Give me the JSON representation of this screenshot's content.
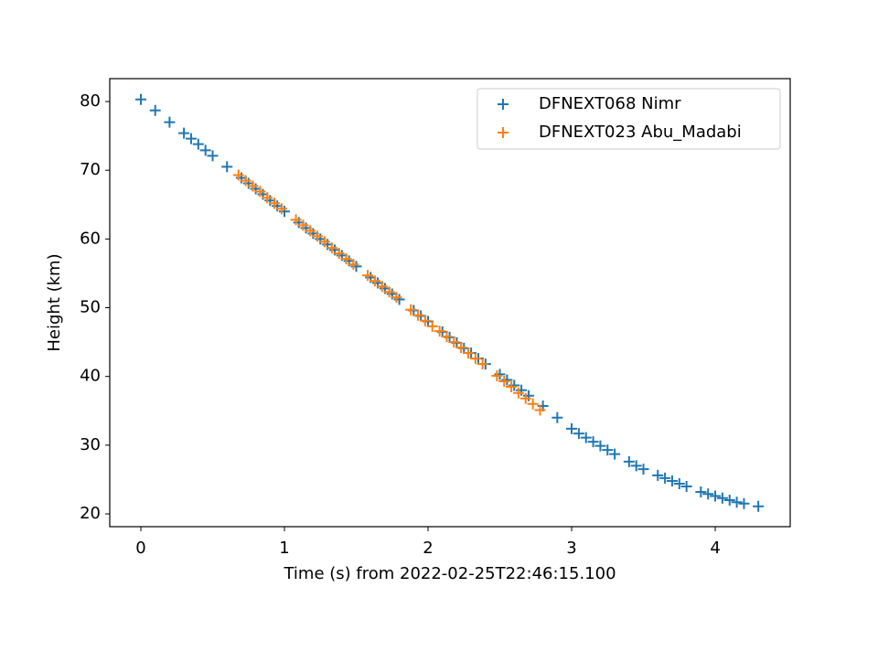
{
  "chart_data": {
    "type": "scatter",
    "xlabel": "Time (s) from 2022-02-25T22:46:15.100",
    "ylabel": "Height (km)",
    "xlim": [
      -0.2166,
      4.522
    ],
    "ylim": [
      18.14,
      83.33
    ],
    "xticks": [
      0,
      1,
      2,
      3,
      4
    ],
    "yticks": [
      20,
      30,
      40,
      50,
      60,
      70,
      80
    ],
    "legend": "upper right",
    "marker": "+",
    "series": [
      {
        "name": "DFNEXT068 Nimr",
        "color": "#1f77b4",
        "x": [
          0,
          0.1,
          0.2,
          0.3,
          0.35,
          0.4,
          0.45,
          0.5,
          0.6,
          0.7,
          0.75,
          0.8,
          0.85,
          0.9,
          0.95,
          1.0,
          1.1,
          1.15,
          1.2,
          1.25,
          1.3,
          1.35,
          1.4,
          1.45,
          1.5,
          1.6,
          1.65,
          1.7,
          1.75,
          1.8,
          1.9,
          1.95,
          2.0,
          2.1,
          2.15,
          2.2,
          2.25,
          2.3,
          2.35,
          2.4,
          2.5,
          2.55,
          2.6,
          2.65,
          2.7,
          2.8,
          2.9,
          3.0,
          3.05,
          3.1,
          3.15,
          3.2,
          3.25,
          3.3,
          3.4,
          3.45,
          3.5,
          3.6,
          3.65,
          3.7,
          3.75,
          3.8,
          3.9,
          3.95,
          4.0,
          4.05,
          4.1,
          4.15,
          4.2,
          4.3
        ],
        "values": [
          80.3,
          78.7,
          77.0,
          75.4,
          74.6,
          73.8,
          72.9,
          72.1,
          70.5,
          68.9,
          68.1,
          67.3,
          66.5,
          65.6,
          64.8,
          64.0,
          62.4,
          61.6,
          60.8,
          60.0,
          59.2,
          58.4,
          57.6,
          56.8,
          56.0,
          54.4,
          53.6,
          52.8,
          52.0,
          51.2,
          49.6,
          48.8,
          48.0,
          46.5,
          45.7,
          44.9,
          44.1,
          43.4,
          42.6,
          41.8,
          40.3,
          39.5,
          38.7,
          38.0,
          37.2,
          35.7,
          34.0,
          32.4,
          31.7,
          31.1,
          30.5,
          29.9,
          29.3,
          28.7,
          27.6,
          27.0,
          26.5,
          25.6,
          25.2,
          24.8,
          24.4,
          24.0,
          23.2,
          22.9,
          22.6,
          22.3,
          22.0,
          21.7,
          21.5,
          21.1
        ]
      },
      {
        "name": "DFNEXT023 Abu_Madabi",
        "color": "#ff7f0e",
        "x": [
          0.68,
          0.73,
          0.78,
          0.83,
          0.88,
          0.93,
          0.98,
          1.08,
          1.13,
          1.18,
          1.23,
          1.28,
          1.33,
          1.38,
          1.43,
          1.48,
          1.58,
          1.63,
          1.68,
          1.73,
          1.78,
          1.88,
          1.93,
          1.98,
          2.03,
          2.08,
          2.13,
          2.18,
          2.23,
          2.28,
          2.33,
          2.38,
          2.48,
          2.53,
          2.58,
          2.63,
          2.68,
          2.73,
          2.78
        ],
        "values": [
          69.3,
          68.5,
          67.7,
          66.9,
          66.0,
          65.2,
          64.4,
          62.8,
          62.0,
          61.2,
          60.4,
          59.6,
          58.7,
          57.9,
          57.1,
          56.3,
          54.7,
          53.9,
          53.1,
          52.3,
          51.5,
          49.7,
          48.9,
          48.1,
          47.3,
          46.6,
          45.8,
          45.0,
          44.2,
          43.4,
          42.6,
          41.8,
          40.1,
          39.3,
          38.5,
          37.6,
          36.8,
          36.0,
          35.1
        ]
      }
    ]
  }
}
